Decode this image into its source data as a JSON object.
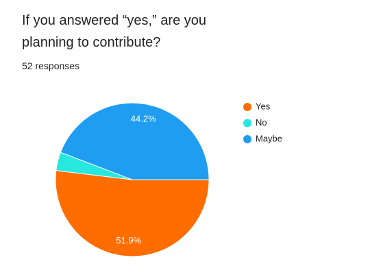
{
  "chart_data": {
    "type": "pie",
    "title": "If you answered “yes,” are you planning to contribute?",
    "subtitle": "52 responses",
    "categories": [
      "Yes",
      "No",
      "Maybe"
    ],
    "values": [
      51.9,
      3.9,
      44.2
    ],
    "value_labels": [
      "51.9%",
      null,
      "44.2%"
    ],
    "colors": [
      "#ff6d00",
      "#26e8df",
      "#1f9df0"
    ],
    "legend": "right"
  }
}
